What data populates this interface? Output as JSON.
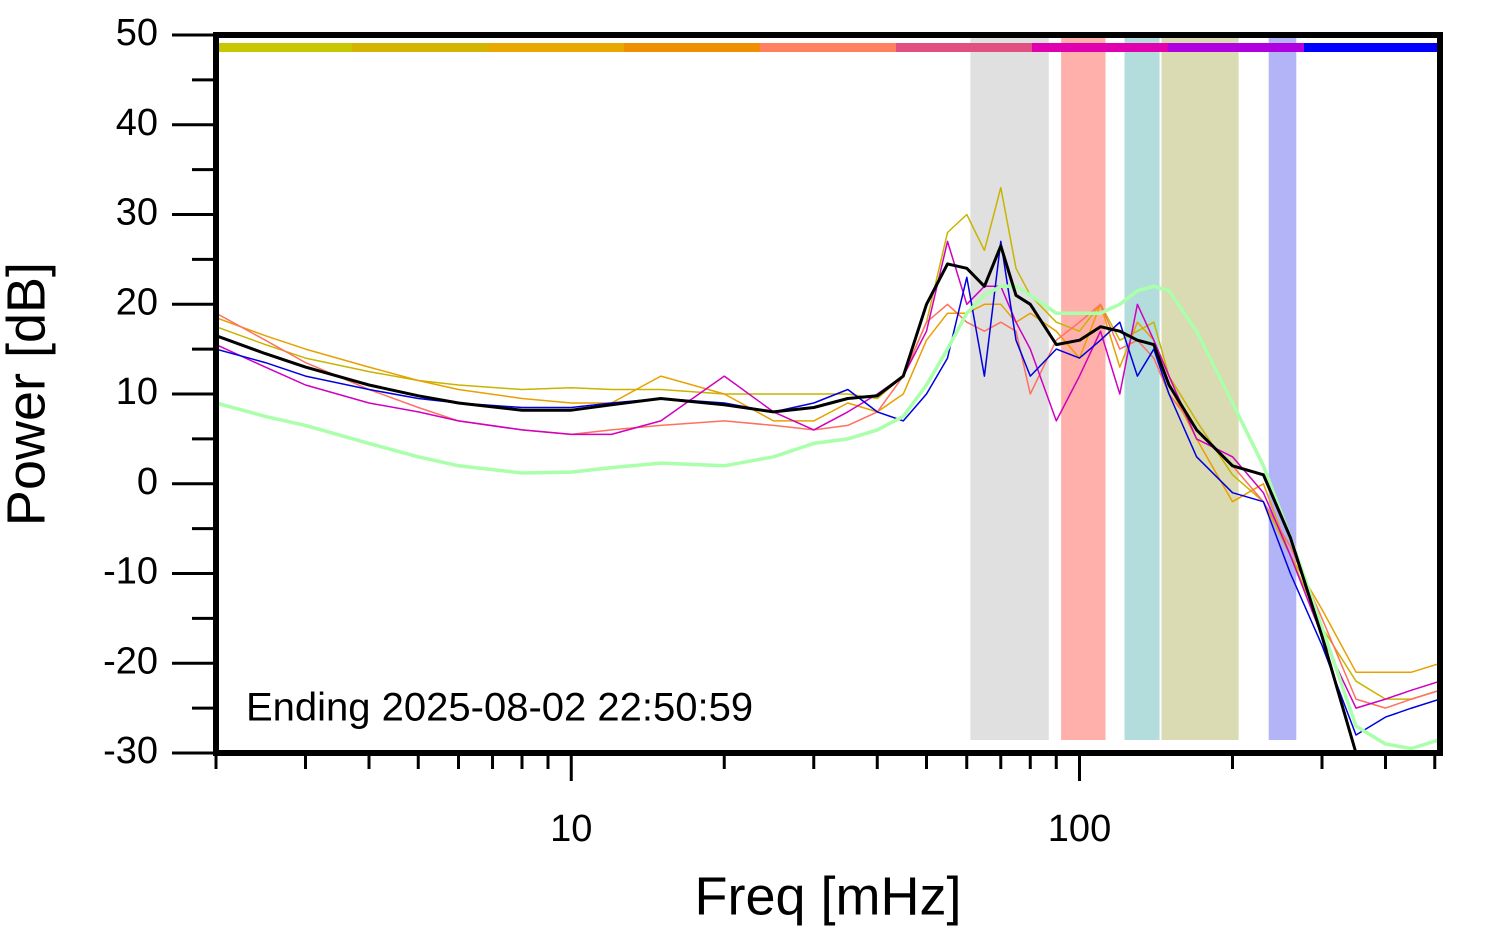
{
  "chart_data": {
    "type": "line",
    "xlabel": "Freq [mHz]",
    "ylabel": "Power [dB]",
    "annotation": "Ending 2025-08-02 22:50:59",
    "xscale": "log",
    "xlim": [
      2,
      512
    ],
    "xticks": [
      10,
      100
    ],
    "xminorticks": [
      2,
      3,
      4,
      5,
      6,
      7,
      8,
      9,
      20,
      30,
      40,
      50,
      60,
      70,
      80,
      90,
      200,
      300,
      400,
      500
    ],
    "ylim": [
      -30,
      50
    ],
    "yticks": [
      -30,
      -20,
      -10,
      0,
      10,
      20,
      30,
      40,
      50
    ],
    "yminorticks": [
      -25,
      -15,
      -5,
      5,
      15,
      25,
      35,
      45
    ],
    "bands": [
      {
        "x0": 61,
        "x1": 87,
        "color": "#e0e0e0"
      },
      {
        "x0": 92,
        "x1": 112.5,
        "color": "#ffb0ab"
      },
      {
        "x0": 122.6,
        "x1": 143.7,
        "color": "#b3dcdc"
      },
      {
        "x0": 145,
        "x1": 205.6,
        "color": "#dadab3"
      },
      {
        "x0": 235.6,
        "x1": 267,
        "color": "#b3b3f8"
      }
    ],
    "colorbar": [
      "#c8c800",
      "#d4b400",
      "#e8a800",
      "#f09000",
      "#ff8060",
      "#e05080",
      "#e000b0",
      "#b000e0",
      "#0000ff"
    ],
    "x": [
      2,
      2.5,
      3,
      4,
      5,
      6,
      8,
      10,
      12,
      15,
      20,
      25,
      30,
      35,
      40,
      45,
      50,
      55,
      60,
      65,
      70,
      75,
      80,
      90,
      100,
      110,
      120,
      130,
      140,
      150,
      170,
      200,
      230,
      260,
      300,
      350,
      400,
      450,
      512
    ],
    "series": [
      {
        "color": "#c8b400",
        "width": 1.5,
        "values": [
          17.5,
          15.5,
          14,
          12.5,
          11.5,
          11,
          10.5,
          10.7,
          10.5,
          10.5,
          10,
          10,
          10,
          10,
          9.5,
          12,
          18,
          28,
          30,
          26,
          33,
          24,
          21,
          18,
          17,
          20,
          16,
          17,
          18,
          12,
          7,
          1,
          -2,
          -8,
          -16,
          -22,
          -24,
          -24,
          -23
        ]
      },
      {
        "color": "#e8a000",
        "width": 1.5,
        "values": [
          18.5,
          16.5,
          15,
          13,
          11.5,
          10.5,
          9.5,
          9,
          9,
          12,
          10,
          7,
          7,
          9,
          8,
          10,
          16,
          19,
          19,
          20,
          20,
          18,
          19,
          17,
          14,
          20,
          13,
          18,
          16,
          11,
          5,
          -2,
          0,
          -8,
          -14,
          -21,
          -21,
          -21,
          -20
        ]
      },
      {
        "color": "#ff7060",
        "width": 1.5,
        "values": [
          19,
          16,
          13.5,
          10.5,
          8.5,
          7,
          6,
          5.5,
          6,
          6.5,
          7,
          6.5,
          6,
          6.5,
          8,
          12,
          18,
          20,
          18,
          17,
          18,
          17,
          10,
          16,
          18,
          20,
          15,
          16,
          14,
          10,
          6,
          2,
          -2,
          -7,
          -15,
          -24,
          -25,
          -24,
          -23
        ]
      },
      {
        "color": "#d000c0",
        "width": 1.5,
        "values": [
          15.5,
          13,
          11,
          9,
          8,
          7,
          6,
          5.5,
          5.5,
          7,
          12,
          8,
          6,
          8,
          10,
          12,
          17,
          27,
          20,
          22,
          22,
          18,
          15,
          7,
          12,
          17,
          10,
          20,
          16,
          12,
          5,
          3,
          -1,
          -8,
          -17,
          -25,
          -24,
          -23,
          -22
        ]
      },
      {
        "color": "#0000e0",
        "width": 1.5,
        "values": [
          15,
          13.5,
          12,
          10.5,
          9.5,
          9,
          8.5,
          8.5,
          9,
          9.5,
          9,
          8,
          9,
          10.5,
          8,
          7,
          10,
          14,
          23,
          12,
          27,
          16,
          12,
          15,
          14,
          16,
          18,
          12,
          15,
          10,
          3,
          -1,
          -2,
          -10,
          -18,
          -28,
          -26,
          -25,
          -24
        ]
      },
      {
        "color": "#aaffaa",
        "width": 3.5,
        "values": [
          9,
          7.5,
          6.5,
          4.5,
          3,
          2,
          1.2,
          1.3,
          1.8,
          2.3,
          2,
          3,
          4.5,
          5,
          6,
          7.5,
          11,
          15,
          19,
          21,
          22,
          22,
          21,
          19,
          19,
          19,
          20,
          21.5,
          22,
          21.5,
          17,
          9,
          2,
          -6,
          -16,
          -27,
          -29,
          -29.5,
          -28.5
        ]
      },
      {
        "color": "#000000",
        "width": 3,
        "values": [
          16.5,
          14.5,
          13,
          11,
          9.8,
          9,
          8.2,
          8.2,
          8.8,
          9.5,
          8.8,
          8,
          8.5,
          9.5,
          9.8,
          12,
          20,
          24.5,
          24,
          22,
          26.5,
          21,
          20,
          15.5,
          16,
          17.5,
          17,
          16,
          15.5,
          11,
          6,
          2,
          1,
          -6,
          -17,
          -30,
          null,
          null,
          null
        ]
      }
    ]
  }
}
